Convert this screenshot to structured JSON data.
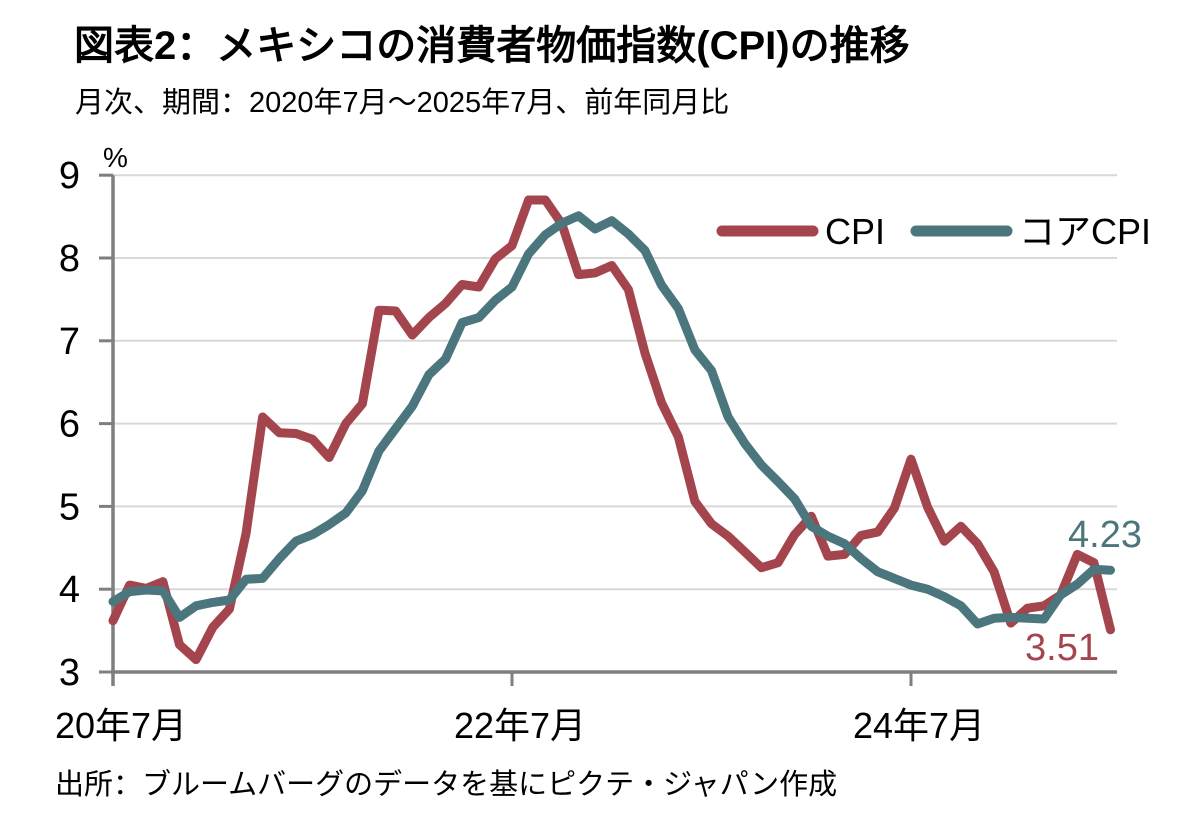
{
  "page": {
    "source_note": "出所：ブルームバーグのデータを基にピクテ・ジャパン作成"
  },
  "colors": {
    "cpi": "#A4454E",
    "core_cpi": "#4C767D",
    "axis": "#7F7F7F",
    "gridline": "#D9D9D9",
    "text": "#000000",
    "background": "#FFFFFF"
  },
  "chart_data": {
    "type": "line",
    "title": "図表2：メキシコの消費者物価指数(CPI)の推移",
    "subtitle": "月次、期間：2020年7月～2025年7月、前年同月比",
    "ylabel": "%",
    "xlabel": "",
    "ylim": [
      3,
      9
    ],
    "yticks": [
      3,
      4,
      5,
      6,
      7,
      8,
      9
    ],
    "grid": "horizontal-light",
    "legend_position": "inside-top-right",
    "x_frequency": "monthly",
    "x_range": [
      "2020-07",
      "2025-07"
    ],
    "xticks": [
      {
        "label": "20年7月",
        "month_index": 0
      },
      {
        "label": "22年7月",
        "month_index": 24
      },
      {
        "label": "24年7月",
        "month_index": 48
      }
    ],
    "series": [
      {
        "name": "CPI",
        "color": "#A4454E",
        "end_label": "3.51",
        "values": [
          3.62,
          4.05,
          4.01,
          4.09,
          3.33,
          3.15,
          3.54,
          3.76,
          4.67,
          6.08,
          5.89,
          5.88,
          5.81,
          5.59,
          6.0,
          6.24,
          7.37,
          7.36,
          7.07,
          7.28,
          7.45,
          7.68,
          7.65,
          7.99,
          8.15,
          8.7,
          8.7,
          8.41,
          7.8,
          7.82,
          7.91,
          7.62,
          6.85,
          6.25,
          5.84,
          5.06,
          4.79,
          4.64,
          4.45,
          4.26,
          4.32,
          4.66,
          4.88,
          4.4,
          4.42,
          4.65,
          4.69,
          4.98,
          5.57,
          4.99,
          4.58,
          4.76,
          4.55,
          4.21,
          3.59,
          3.77,
          3.8,
          3.93,
          4.42,
          4.32,
          3.51
        ]
      },
      {
        "name": "コアCPI",
        "color": "#4C767D",
        "end_label": "4.23",
        "values": [
          3.85,
          3.97,
          3.99,
          3.98,
          3.66,
          3.8,
          3.84,
          3.87,
          4.12,
          4.13,
          4.37,
          4.58,
          4.66,
          4.78,
          4.92,
          5.19,
          5.67,
          5.94,
          6.21,
          6.59,
          6.78,
          7.22,
          7.28,
          7.49,
          7.65,
          8.05,
          8.28,
          8.42,
          8.51,
          8.35,
          8.45,
          8.29,
          8.09,
          7.67,
          7.39,
          6.89,
          6.64,
          6.08,
          5.76,
          5.5,
          5.3,
          5.09,
          4.76,
          4.64,
          4.55,
          4.37,
          4.21,
          4.13,
          4.05,
          4.0,
          3.91,
          3.8,
          3.58,
          3.65,
          3.66,
          3.65,
          3.64,
          3.93,
          4.06,
          4.24,
          4.23
        ]
      }
    ]
  }
}
